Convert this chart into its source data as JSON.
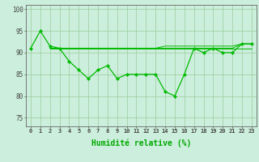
{
  "x": [
    0,
    1,
    2,
    3,
    4,
    5,
    6,
    7,
    8,
    9,
    10,
    11,
    12,
    13,
    14,
    15,
    16,
    17,
    18,
    19,
    20,
    21,
    22,
    23
  ],
  "y_main": [
    91,
    95,
    91.5,
    91,
    88,
    86,
    84,
    86,
    87,
    84,
    85,
    85,
    85,
    85,
    81,
    80,
    85,
    91,
    90,
    91,
    90,
    90,
    92,
    92
  ],
  "y_line1": [
    91,
    91,
    91,
    91,
    91,
    91,
    91,
    91,
    91,
    91,
    91,
    91,
    91,
    91,
    91,
    91,
    91,
    91,
    91,
    91,
    91,
    91,
    91,
    91
  ],
  "y_line2": [
    91,
    91,
    91,
    91,
    91,
    91,
    91,
    91,
    91,
    91,
    91,
    91,
    91,
    91,
    91.5,
    91.5,
    91.5,
    91.5,
    91.5,
    91.5,
    91.5,
    91.5,
    92,
    92
  ],
  "y_line3": [
    91,
    91,
    91,
    91,
    91,
    91,
    91,
    91,
    91,
    91,
    91,
    91,
    91,
    91,
    91,
    91,
    91,
    91,
    91,
    91,
    91,
    91,
    92,
    92
  ],
  "line_color": "#00bb00",
  "bg_color": "#cceedd",
  "grid_color": "#99cc99",
  "text_color": "#00aa00",
  "ylim": [
    73,
    101
  ],
  "yticks": [
    75,
    80,
    85,
    90,
    95,
    100
  ],
  "xlabel": "Humidité relative (%)"
}
